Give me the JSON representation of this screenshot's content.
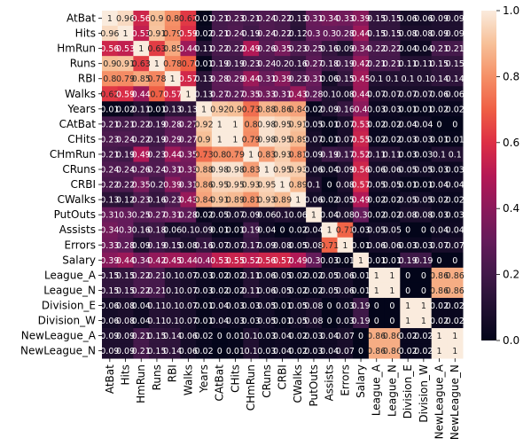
{
  "chart_data": {
    "type": "heatmap",
    "title": "",
    "xlabel": "",
    "ylabel": "",
    "labels": [
      "AtBat",
      "Hits",
      "HmRun",
      "Runs",
      "RBI",
      "Walks",
      "Years",
      "CAtBat",
      "CHits",
      "CHmRun",
      "CRuns",
      "CRBI",
      "CWalks",
      "PutOuts",
      "Assists",
      "Errors",
      "Salary",
      "League_A",
      "League_N",
      "Division_E",
      "Division_W",
      "NewLeague_A",
      "NewLeague_N"
    ],
    "values": [
      [
        1.0,
        0.96,
        0.56,
        0.9,
        0.8,
        0.62,
        0.01,
        0.21,
        0.23,
        0.21,
        0.24,
        0.22,
        0.13,
        0.31,
        0.34,
        0.33,
        0.39,
        0.15,
        0.15,
        0.06,
        0.06,
        0.09,
        0.09
      ],
      [
        0.96,
        1.0,
        0.53,
        0.91,
        0.79,
        0.59,
        0.02,
        0.21,
        0.24,
        0.19,
        0.24,
        0.22,
        0.12,
        0.3,
        0.3,
        0.28,
        0.44,
        0.15,
        0.15,
        0.08,
        0.08,
        0.09,
        0.09
      ],
      [
        0.56,
        0.53,
        1.0,
        0.63,
        0.85,
        0.44,
        0.11,
        0.22,
        0.22,
        0.49,
        0.26,
        0.35,
        0.23,
        0.25,
        0.16,
        0.09,
        0.34,
        0.22,
        0.22,
        0.04,
        0.04,
        0.21,
        0.21
      ],
      [
        0.9,
        0.91,
        0.63,
        1.0,
        0.78,
        0.7,
        0.01,
        0.19,
        0.19,
        0.23,
        0.24,
        0.2,
        0.16,
        0.27,
        0.18,
        0.19,
        0.42,
        0.21,
        0.21,
        0.11,
        0.11,
        0.15,
        0.15
      ],
      [
        0.8,
        0.79,
        0.85,
        0.78,
        1.0,
        0.57,
        0.13,
        0.28,
        0.29,
        0.44,
        0.31,
        0.39,
        0.23,
        0.31,
        0.06,
        0.15,
        0.45,
        0.1,
        0.1,
        0.1,
        0.1,
        0.14,
        0.14
      ],
      [
        0.62,
        0.59,
        0.44,
        0.7,
        0.57,
        1.0,
        0.13,
        0.27,
        0.27,
        0.35,
        0.33,
        0.31,
        0.43,
        0.28,
        0.1,
        0.08,
        0.44,
        0.07,
        0.07,
        0.07,
        0.07,
        0.06,
        0.06
      ],
      [
        0.01,
        0.02,
        0.11,
        0.01,
        0.13,
        0.13,
        1.0,
        0.92,
        0.9,
        0.73,
        0.88,
        0.86,
        0.84,
        0.02,
        0.09,
        0.16,
        0.4,
        0.03,
        0.03,
        0.01,
        0.01,
        0.02,
        0.02
      ],
      [
        0.21,
        0.21,
        0.22,
        0.19,
        0.28,
        0.27,
        0.92,
        1.0,
        1.0,
        0.8,
        0.98,
        0.95,
        0.91,
        0.05,
        0.01,
        0.07,
        0.53,
        0.02,
        0.02,
        0.04,
        0.04,
        0.0,
        0.0
      ],
      [
        0.23,
        0.24,
        0.22,
        0.19,
        0.29,
        0.27,
        0.9,
        1.0,
        1.0,
        0.79,
        0.98,
        0.95,
        0.89,
        0.07,
        0.01,
        0.07,
        0.55,
        0.02,
        0.02,
        0.03,
        0.03,
        0.01,
        0.01
      ],
      [
        0.21,
        0.19,
        0.49,
        0.23,
        0.44,
        0.35,
        0.73,
        0.8,
        0.79,
        1.0,
        0.83,
        0.93,
        0.81,
        0.09,
        0.19,
        0.17,
        0.52,
        0.11,
        0.11,
        0.03,
        0.03,
        0.1,
        0.1
      ],
      [
        0.24,
        0.24,
        0.26,
        0.24,
        0.31,
        0.33,
        0.88,
        0.98,
        0.98,
        0.83,
        1.0,
        0.95,
        0.93,
        0.06,
        0.04,
        0.09,
        0.56,
        0.06,
        0.06,
        0.05,
        0.05,
        0.03,
        0.03
      ],
      [
        0.22,
        0.22,
        0.35,
        0.2,
        0.39,
        0.31,
        0.86,
        0.95,
        0.95,
        0.93,
        0.95,
        1.0,
        0.89,
        0.1,
        0.0,
        0.08,
        0.57,
        0.05,
        0.05,
        0.01,
        0.01,
        0.04,
        0.04
      ],
      [
        0.13,
        0.12,
        0.23,
        0.16,
        0.23,
        0.43,
        0.84,
        0.91,
        0.89,
        0.81,
        0.93,
        0.89,
        1.0,
        0.06,
        0.02,
        0.05,
        0.49,
        0.02,
        0.02,
        0.05,
        0.05,
        0.02,
        0.02
      ],
      [
        0.31,
        0.3,
        0.25,
        0.27,
        0.31,
        0.28,
        0.02,
        0.05,
        0.07,
        0.09,
        0.06,
        0.1,
        0.06,
        1.0,
        0.04,
        0.08,
        0.3,
        0.02,
        0.02,
        0.08,
        0.08,
        0.03,
        0.03
      ],
      [
        0.34,
        0.3,
        0.16,
        0.18,
        0.06,
        0.1,
        0.09,
        0.01,
        0.01,
        0.19,
        0.04,
        0.0,
        0.02,
        0.04,
        1.0,
        0.71,
        0.03,
        0.05,
        0.05,
        0.0,
        0.0,
        0.04,
        0.04
      ],
      [
        0.33,
        0.28,
        0.09,
        0.19,
        0.15,
        0.08,
        0.16,
        0.07,
        0.07,
        0.17,
        0.09,
        0.08,
        0.05,
        0.08,
        0.71,
        1.0,
        0.01,
        0.06,
        0.06,
        0.03,
        0.03,
        0.07,
        0.07
      ],
      [
        0.39,
        0.44,
        0.34,
        0.42,
        0.45,
        0.44,
        0.4,
        0.53,
        0.55,
        0.52,
        0.56,
        0.57,
        0.49,
        0.3,
        0.03,
        0.01,
        1.0,
        0.01,
        0.01,
        0.19,
        0.19,
        0.0,
        0.0
      ],
      [
        0.15,
        0.15,
        0.22,
        0.21,
        0.1,
        0.07,
        0.03,
        0.02,
        0.02,
        0.11,
        0.06,
        0.05,
        0.02,
        0.02,
        0.05,
        0.06,
        0.01,
        1.0,
        1.0,
        0.0,
        0.0,
        0.86,
        0.86
      ],
      [
        0.15,
        0.15,
        0.22,
        0.21,
        0.1,
        0.07,
        0.03,
        0.02,
        0.02,
        0.11,
        0.06,
        0.05,
        0.02,
        0.02,
        0.05,
        0.06,
        0.01,
        1.0,
        1.0,
        0.0,
        0.0,
        0.86,
        0.86
      ],
      [
        0.06,
        0.08,
        0.04,
        0.11,
        0.1,
        0.07,
        0.01,
        0.04,
        0.03,
        0.03,
        0.05,
        0.01,
        0.05,
        0.08,
        0.0,
        0.03,
        0.19,
        0.0,
        0.0,
        1.0,
        1.0,
        0.02,
        0.02
      ],
      [
        0.06,
        0.08,
        0.04,
        0.11,
        0.1,
        0.07,
        0.01,
        0.04,
        0.03,
        0.03,
        0.05,
        0.01,
        0.05,
        0.08,
        0.0,
        0.03,
        0.19,
        0.0,
        0.0,
        1.0,
        1.0,
        0.02,
        0.02
      ],
      [
        0.09,
        0.09,
        0.21,
        0.15,
        0.14,
        0.06,
        0.02,
        0.0,
        0.01,
        0.1,
        0.03,
        0.04,
        0.02,
        0.03,
        0.04,
        0.07,
        0.0,
        0.86,
        0.86,
        0.02,
        0.02,
        1.0,
        1.0
      ],
      [
        0.09,
        0.09,
        0.21,
        0.15,
        0.14,
        0.06,
        0.02,
        0.0,
        0.01,
        0.1,
        0.03,
        0.04,
        0.02,
        0.03,
        0.04,
        0.07,
        0.0,
        0.86,
        0.86,
        0.02,
        0.02,
        1.0,
        1.0
      ]
    ],
    "vmin": 0.0,
    "vmax": 1.0,
    "colormap": "rocket",
    "colorbar_ticks": [
      "0.0",
      "0.2",
      "0.4",
      "0.6",
      "0.8",
      "1.0"
    ],
    "annotated": true,
    "grid": false,
    "legend": "colorbar-right"
  }
}
